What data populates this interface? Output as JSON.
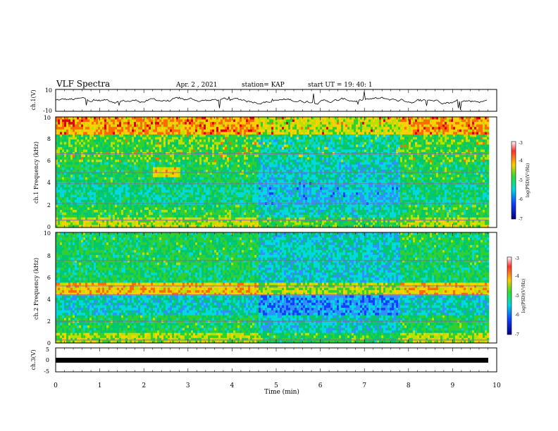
{
  "header": {
    "title": "VLF Spectra",
    "date": "Apr. 2 , 2021",
    "station": "station= KAP",
    "start": "start UT =  19: 40: 1"
  },
  "chart_data": [
    {
      "type": "line",
      "panel": "ch1-waveform",
      "ylabel": "ch.1(V)",
      "yticks": [
        "10",
        "-10"
      ],
      "ylim": [
        -10,
        10
      ],
      "xlim": [
        0,
        10
      ],
      "x_end": 9.8,
      "approx_level": 0,
      "approx_amplitude": 3.5
    },
    {
      "type": "heatmap",
      "panel": "ch1-spectrogram",
      "ylabel": "ch.1 Frequency (kHz)",
      "yticks": [
        "0",
        "2",
        "4",
        "6",
        "8",
        "10"
      ],
      "ylim": [
        0,
        10
      ],
      "xlim": [
        0,
        10
      ],
      "colorbar": {
        "label": "log(PSD)(V²/Hz)",
        "ticks": [
          "-3",
          "-4",
          "-5",
          "-6",
          "-7"
        ],
        "range": [
          -7,
          -3
        ]
      },
      "segments_min": [
        0,
        2.2,
        2.8,
        4.6,
        5.8,
        7.8,
        9.8
      ],
      "notable_lines_khz": [
        6.7,
        5.0,
        4.0,
        2.2,
        0.7
      ]
    },
    {
      "type": "heatmap",
      "panel": "ch2-spectrogram",
      "ylabel": "ch.2 Frequency (kHz)",
      "yticks": [
        "0",
        "2",
        "4",
        "6",
        "8",
        "10"
      ],
      "ylim": [
        0,
        10
      ],
      "xlim": [
        0,
        10
      ],
      "colorbar": {
        "label": "log(PSD)(V²/Hz)",
        "ticks": [
          "-3",
          "-4",
          "-5",
          "-6",
          "-7"
        ],
        "range": [
          -7,
          -3
        ]
      },
      "segments_min": [
        0,
        2.2,
        2.8,
        4.6,
        5.8,
        7.8,
        9.8
      ],
      "notable_lines_khz": [
        7.5,
        5.2,
        4.4,
        2.0,
        0.3
      ]
    },
    {
      "type": "line",
      "panel": "ch3-waveform",
      "ylabel": "ch.3(V)",
      "yticks": [
        "5",
        "0",
        "-5"
      ],
      "ylim": [
        -5,
        5
      ],
      "xlim": [
        0,
        10
      ],
      "x_end": 9.8,
      "approx_level": -1.5
    }
  ],
  "xaxis": {
    "label": "Time (min)",
    "ticks": [
      "0",
      "1",
      "2",
      "3",
      "4",
      "5",
      "6",
      "7",
      "8",
      "9",
      "10"
    ]
  }
}
